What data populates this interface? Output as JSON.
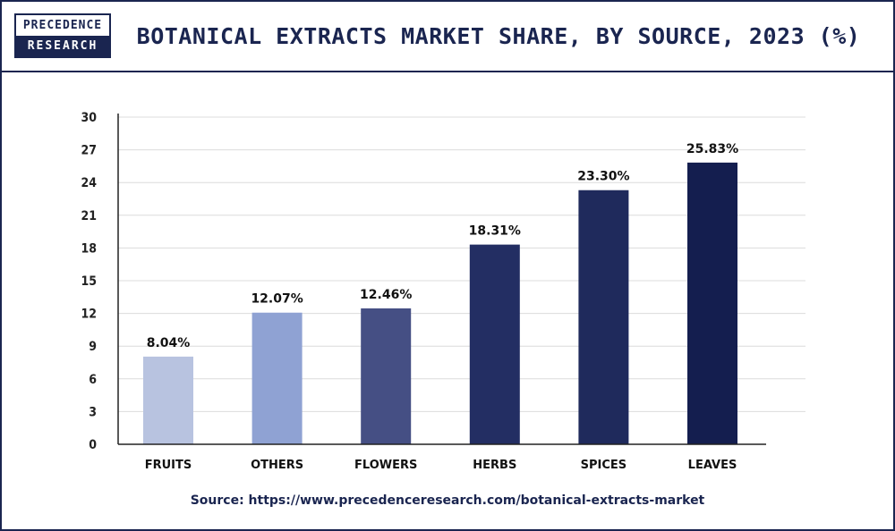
{
  "logo": {
    "line1": "PRECEDENCE",
    "line2": "RESEARCH"
  },
  "title": "BOTANICAL EXTRACTS MARKET SHARE, BY SOURCE, 2023 (%)",
  "source": "Source: https://www.precedenceresearch.com/botanical-extracts-market",
  "chart_data": {
    "type": "bar",
    "title": "BOTANICAL EXTRACTS MARKET SHARE, BY SOURCE, 2023 (%)",
    "categories": [
      "FRUITS",
      "OTHERS",
      "FLOWERS",
      "HERBS",
      "SPICES",
      "LEAVES"
    ],
    "values": [
      8.04,
      12.07,
      12.46,
      18.31,
      23.3,
      25.83
    ],
    "data_labels": [
      "8.04%",
      "12.07%",
      "12.46%",
      "18.31%",
      "23.30%",
      "25.83%"
    ],
    "bar_colors": [
      "#b8c3e0",
      "#8fa2d3",
      "#454f84",
      "#232e63",
      "#1f2a5c",
      "#141e4f"
    ],
    "ylim": [
      0,
      30
    ],
    "yticks": [
      0,
      3,
      6,
      9,
      12,
      15,
      18,
      21,
      24,
      27,
      30
    ],
    "grid": true,
    "xlabel": "",
    "ylabel": ""
  }
}
